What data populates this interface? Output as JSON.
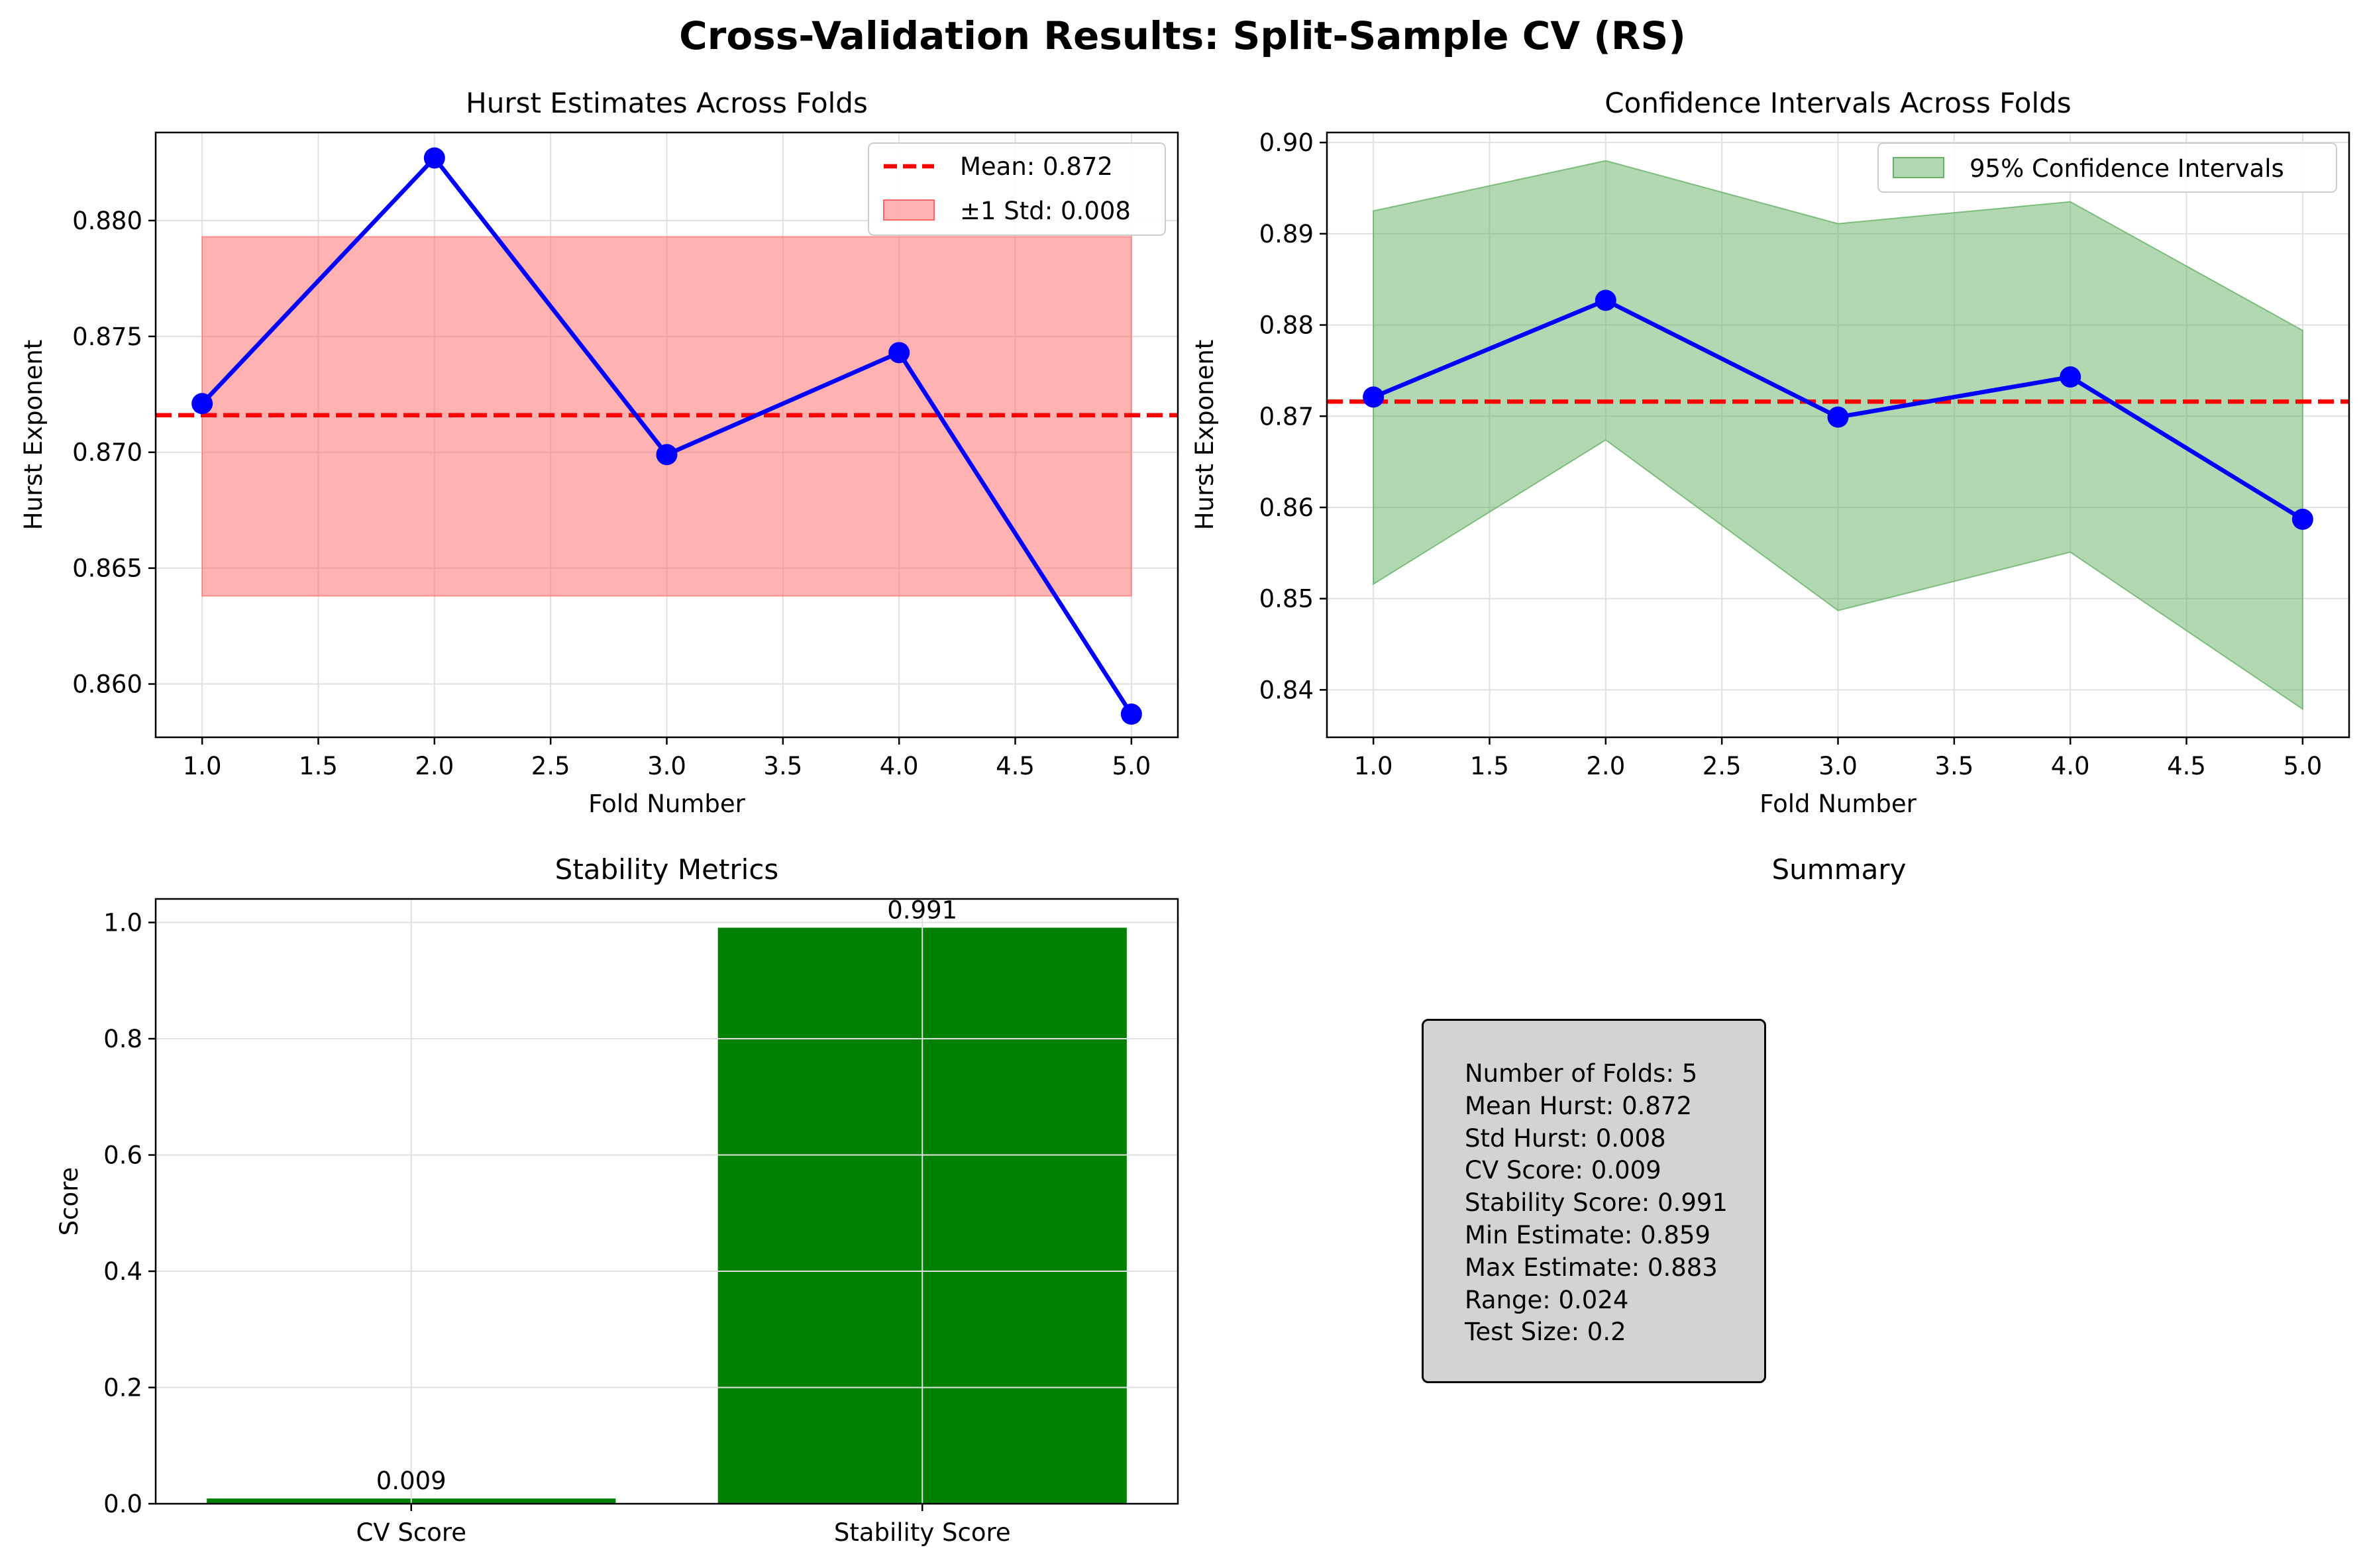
{
  "figure_title": "Cross-Validation Results: Split-Sample CV (RS)",
  "colors": {
    "estimates_line": "#0000ff",
    "mean_line": "#ff0000",
    "std_band": "#ff6666",
    "ci_band": "#66b266",
    "bars": "#008000",
    "grid": "#e0e0e0",
    "summary_box": "#d3d3d3"
  },
  "chart_data": [
    {
      "type": "line",
      "title": "Hurst Estimates Across Folds",
      "xlabel": "Fold Number",
      "ylabel": "Hurst Exponent",
      "x": [
        1,
        2,
        3,
        4,
        5
      ],
      "series": [
        {
          "values": [
            0.8721,
            0.8827,
            0.8699,
            0.8743,
            0.8587
          ]
        }
      ],
      "mean": 0.8716,
      "std_band": [
        0.8638,
        0.8793
      ],
      "legend": [
        "Mean: 0.872",
        "±1 Std: 0.008"
      ],
      "legend_position": "upper right",
      "xlim": [
        0.8,
        5.2
      ],
      "ylim": [
        0.8577,
        0.8838
      ],
      "xticks": [
        "1.0",
        "1.5",
        "2.0",
        "2.5",
        "3.0",
        "3.5",
        "4.0",
        "4.5",
        "5.0"
      ],
      "yticks": [
        "0.860",
        "0.865",
        "0.870",
        "0.875",
        "0.880"
      ],
      "grid": true
    },
    {
      "type": "line",
      "title": "Confidence Intervals Across Folds",
      "xlabel": "Fold Number",
      "ylabel": "Hurst Exponent",
      "x": [
        1,
        2,
        3,
        4,
        5
      ],
      "series": [
        {
          "values": [
            0.8721,
            0.8827,
            0.8699,
            0.8743,
            0.8587
          ]
        }
      ],
      "ci_upper": [
        0.8925,
        0.898,
        0.8911,
        0.8935,
        0.8794
      ],
      "ci_lower": [
        0.8516,
        0.8674,
        0.8487,
        0.8551,
        0.8379
      ],
      "mean": 0.8716,
      "legend": [
        "95% Confidence Intervals"
      ],
      "legend_position": "upper right",
      "xlim": [
        0.8,
        5.2
      ],
      "ylim": [
        0.8348,
        0.9011
      ],
      "xticks": [
        "1.0",
        "1.5",
        "2.0",
        "2.5",
        "3.0",
        "3.5",
        "4.0",
        "4.5",
        "5.0"
      ],
      "yticks": [
        "0.84",
        "0.85",
        "0.86",
        "0.87",
        "0.88",
        "0.89",
        "0.90"
      ],
      "grid": true
    },
    {
      "type": "bar",
      "title": "Stability Metrics",
      "ylabel": "Score",
      "categories": [
        "CV Score",
        "Stability Score"
      ],
      "values": [
        0.009,
        0.991
      ],
      "data_labels": [
        "0.009",
        "0.991"
      ],
      "ylim": [
        0,
        1.0405
      ],
      "yticks": [
        "0.0",
        "0.2",
        "0.4",
        "0.6",
        "0.8",
        "1.0"
      ],
      "grid": true
    }
  ],
  "summary": {
    "title": "Summary",
    "lines": [
      "Number of Folds: 5",
      "Mean Hurst: 0.872",
      "Std Hurst: 0.008",
      "CV Score: 0.009",
      "Stability Score: 0.991",
      "Min Estimate: 0.859",
      "Max Estimate: 0.883",
      "Range: 0.024",
      "Test Size: 0.2"
    ]
  }
}
